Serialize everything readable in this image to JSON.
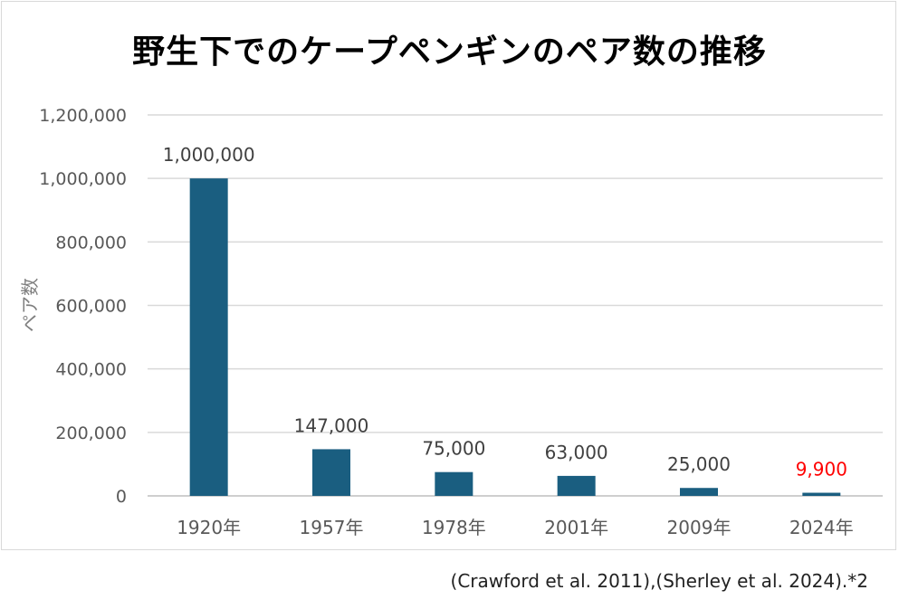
{
  "chart_data": {
    "type": "bar",
    "title": "野生下でのケープペンギンのペア数の推移",
    "ylabel": "ペア数",
    "xlabel": "",
    "categories": [
      "1920年",
      "1957年",
      "1978年",
      "2001年",
      "2009年",
      "2024年"
    ],
    "values": [
      1000000,
      147000,
      75000,
      63000,
      25000,
      9900
    ],
    "data_labels": [
      "1,000,000",
      "147,000",
      "75,000",
      "63,000",
      "25,000",
      "9,900"
    ],
    "ylim": [
      0,
      1200000
    ],
    "yticks": [
      0,
      200000,
      400000,
      600000,
      800000,
      1000000,
      1200000
    ],
    "ytick_labels": [
      "0",
      "200,000",
      "400,000",
      "600,000",
      "800,000",
      "1,000,000",
      "1,200,000"
    ],
    "grid": true,
    "legend": "none",
    "bar_color": "#1a5e80",
    "highlight_label_color": "#ff0000",
    "highlight_index": 5
  },
  "source_note": "(Crawford et al. 2011),(Sherley et al. 2024).*2"
}
